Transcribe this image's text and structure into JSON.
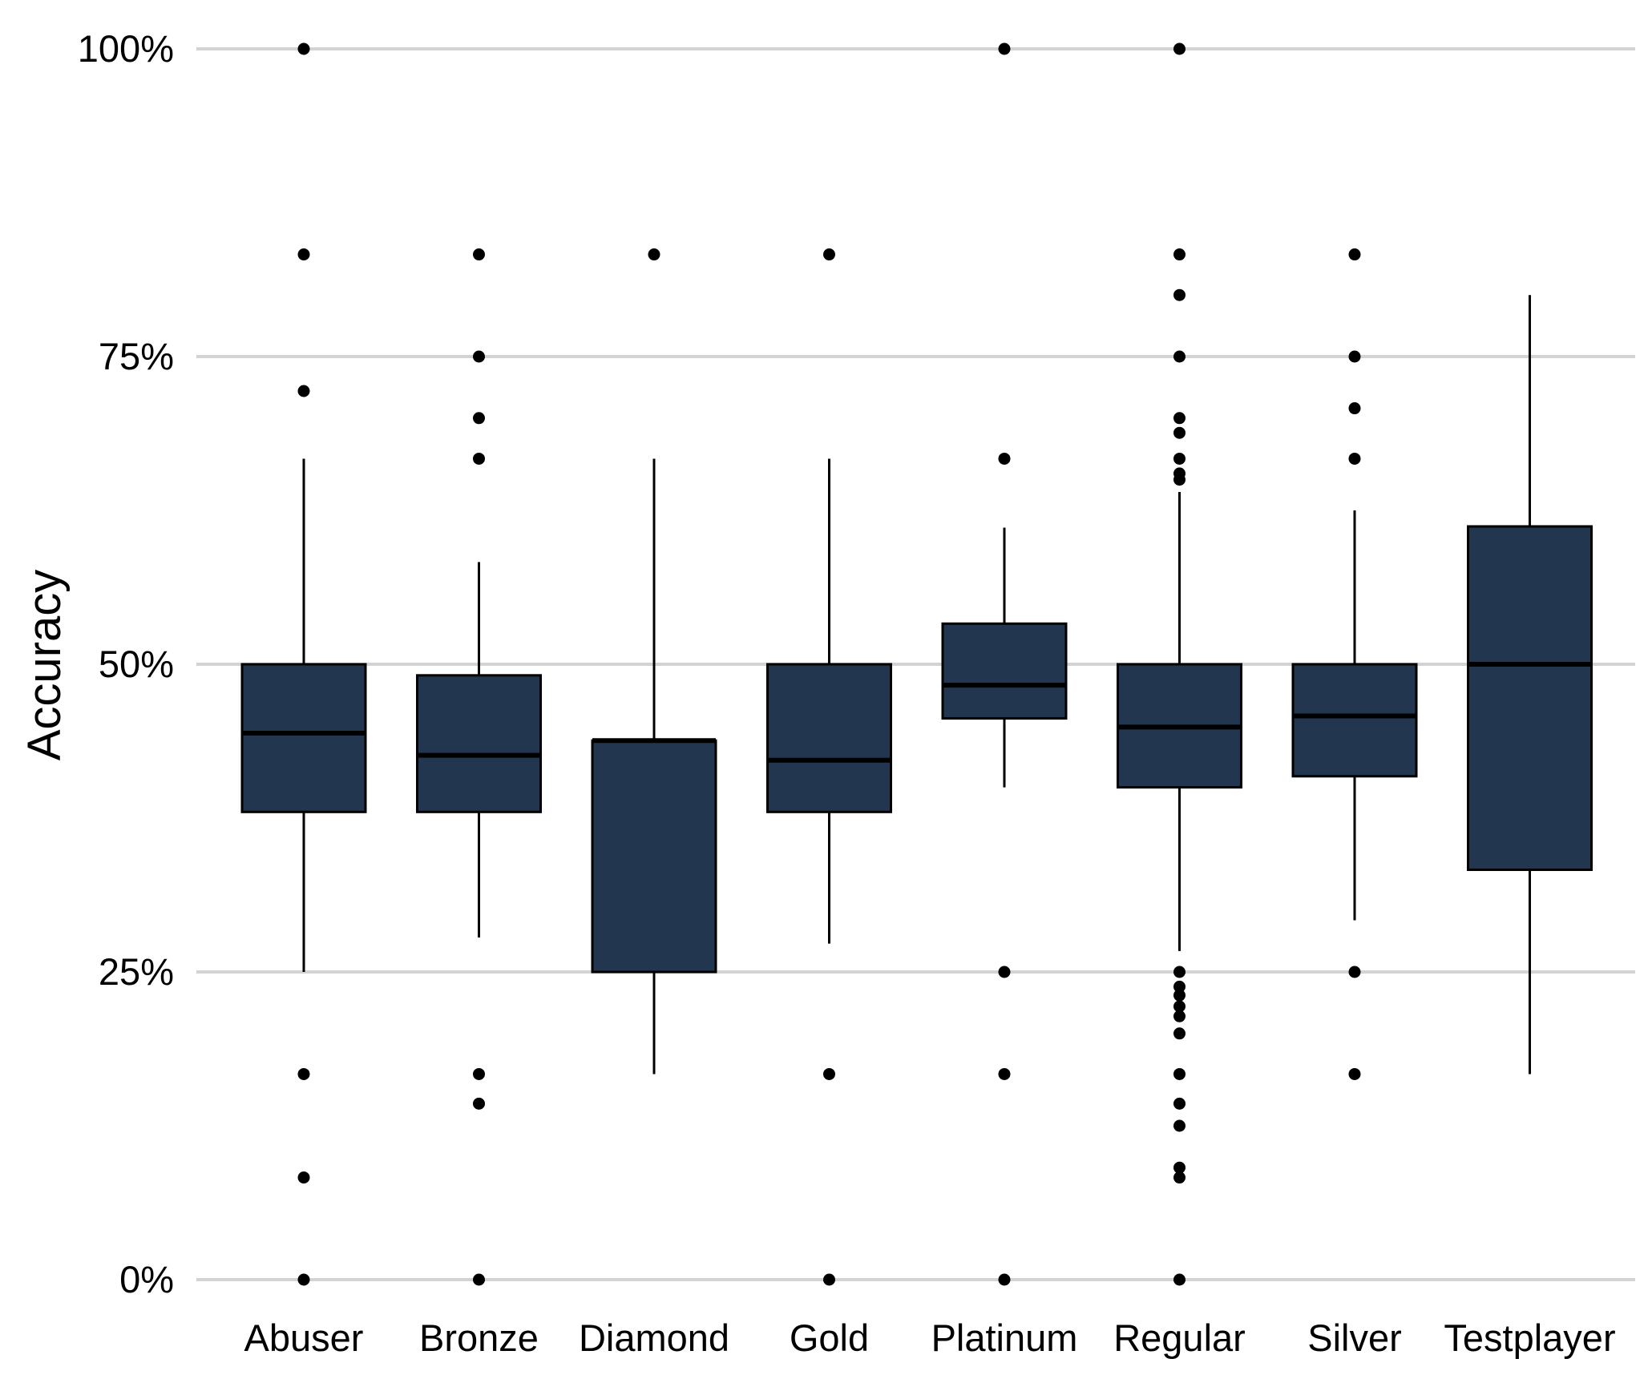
{
  "chart_data": {
    "type": "boxplot",
    "title": "",
    "xlabel": "",
    "ylabel": "Accuracy",
    "ylim": [
      0,
      1
    ],
    "yticks": [
      0,
      0.25,
      0.5,
      0.75,
      1.0
    ],
    "ytick_labels": [
      "0%",
      "25%",
      "50%",
      "75%",
      "100%"
    ],
    "grid": "horizontal major gridlines",
    "legend": "none",
    "colors": {
      "box_fill": "#22364F",
      "box_stroke": "#000000",
      "grid": "#D3D3D3",
      "outlier": "#000000"
    },
    "categories": [
      "Abuser",
      "Bronze",
      "Diamond",
      "Gold",
      "Platinum",
      "Regular",
      "Silver",
      "Testplayer"
    ],
    "boxes": [
      {
        "category": "Abuser",
        "q1": 0.38,
        "median": 0.444,
        "q3": 0.5,
        "whisker_low": 0.25,
        "whisker_high": 0.667,
        "outliers": [
          1.0,
          0.833,
          0.722,
          0.167,
          0.083,
          0.0
        ]
      },
      {
        "category": "Bronze",
        "q1": 0.38,
        "median": 0.426,
        "q3": 0.491,
        "whisker_low": 0.278,
        "whisker_high": 0.583,
        "outliers": [
          0.833,
          0.75,
          0.7,
          0.667,
          0.167,
          0.143,
          0.0
        ]
      },
      {
        "category": "Diamond",
        "q1": 0.25,
        "median": 0.438,
        "q3": 0.438,
        "whisker_low": 0.167,
        "whisker_high": 0.667,
        "outliers": [
          0.833
        ]
      },
      {
        "category": "Gold",
        "q1": 0.38,
        "median": 0.422,
        "q3": 0.5,
        "whisker_low": 0.273,
        "whisker_high": 0.667,
        "outliers": [
          0.833,
          0.167,
          0.0
        ]
      },
      {
        "category": "Platinum",
        "q1": 0.456,
        "median": 0.483,
        "q3": 0.533,
        "whisker_low": 0.4,
        "whisker_high": 0.611,
        "outliers": [
          1.0,
          0.667,
          0.25,
          0.167,
          0.0
        ]
      },
      {
        "category": "Regular",
        "q1": 0.4,
        "median": 0.449,
        "q3": 0.5,
        "whisker_low": 0.267,
        "whisker_high": 0.64,
        "outliers": [
          1.0,
          0.833,
          0.8,
          0.75,
          0.7,
          0.688,
          0.667,
          0.655,
          0.65,
          0.25,
          0.238,
          0.231,
          0.222,
          0.214,
          0.2,
          0.167,
          0.143,
          0.125,
          0.091,
          0.083,
          0.0
        ]
      },
      {
        "category": "Silver",
        "q1": 0.409,
        "median": 0.458,
        "q3": 0.5,
        "whisker_low": 0.292,
        "whisker_high": 0.625,
        "outliers": [
          0.833,
          0.75,
          0.708,
          0.667,
          0.25,
          0.167
        ]
      },
      {
        "category": "Testplayer",
        "q1": 0.333,
        "median": 0.5,
        "q3": 0.612,
        "whisker_low": 0.167,
        "whisker_high": 0.8,
        "outliers": []
      }
    ]
  }
}
